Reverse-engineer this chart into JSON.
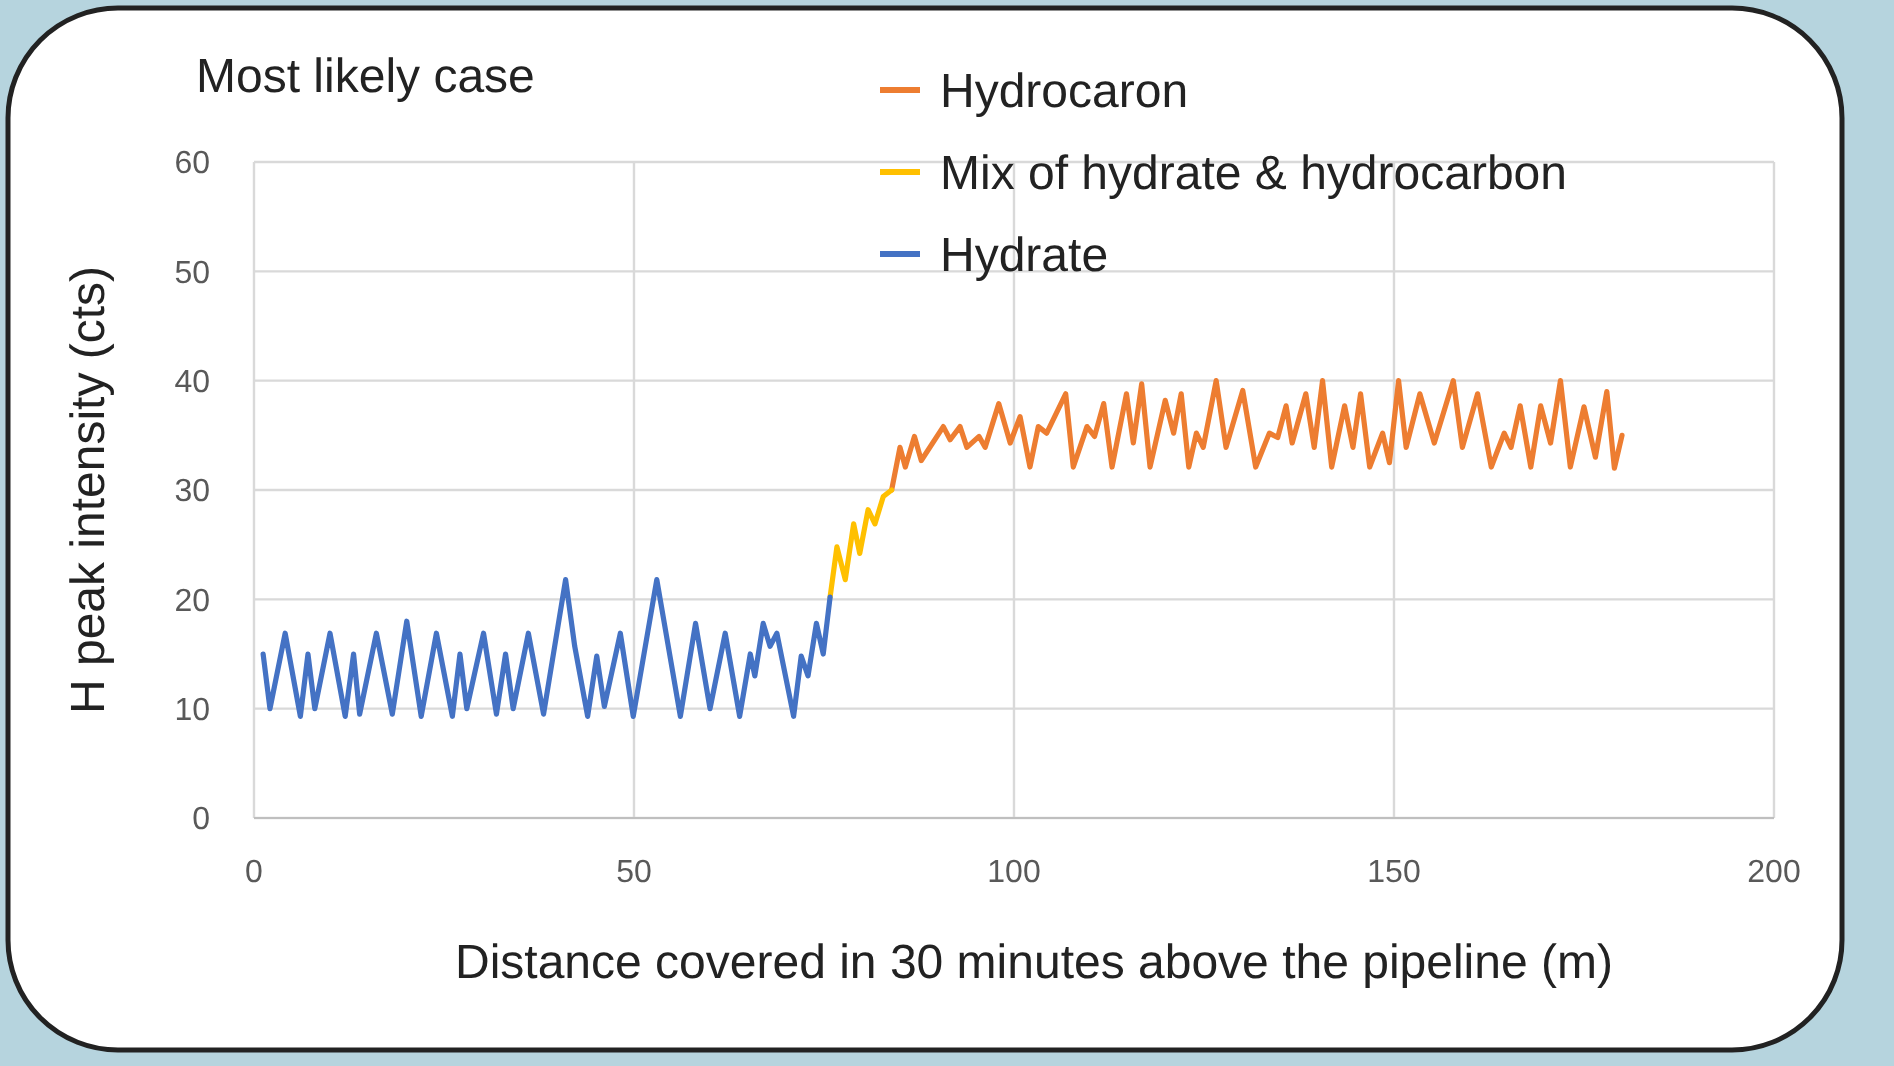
{
  "chart_data": {
    "type": "line",
    "title": "Most likely case",
    "xlabel": "Distance covered in 30 minutes above the pipeline (m)",
    "ylabel": "H peak intensity (cts)",
    "xlim": [
      0,
      200
    ],
    "xticks": [
      0,
      50,
      100,
      150,
      200
    ],
    "ylim": [
      0,
      60
    ],
    "yticks": [
      0,
      10,
      20,
      30,
      40,
      50,
      60
    ],
    "grid": true,
    "legend": "top right",
    "marker": "none",
    "line_style": "solid",
    "series": [
      {
        "name": "Hydrocaron",
        "color": "#ed7d31",
        "x": [
          83.9,
          85.0,
          85.7,
          86.9,
          87.8,
          90.7,
          91.6,
          92.9,
          93.8,
          95.4,
          96.2,
          98.0,
          99.5,
          100.8,
          102.1,
          103.2,
          104.3,
          106.8,
          107.8,
          109.6,
          110.6,
          111.8,
          112.9,
          114.8,
          115.7,
          116.8,
          117.9,
          119.9,
          121.0,
          122.0,
          123.0,
          124.0,
          124.9,
          126.6,
          127.9,
          130.1,
          131.8,
          133.6,
          134.7,
          135.8,
          136.6,
          138.4,
          139.5,
          140.6,
          141.8,
          143.5,
          144.6,
          145.6,
          146.8,
          148.5,
          149.4,
          150.6,
          151.6,
          153.4,
          155.3,
          157.8,
          159.0,
          161.0,
          162.8,
          164.5,
          165.4,
          166.6,
          168.0,
          169.3,
          170.6,
          171.9,
          173.2,
          175.0,
          176.5,
          178.0,
          179.0,
          180.0
        ],
        "values": [
          30.0,
          33.9,
          32.1,
          34.9,
          32.7,
          35.8,
          34.6,
          35.8,
          33.9,
          34.9,
          33.9,
          37.9,
          34.3,
          36.7,
          32.1,
          35.8,
          35.2,
          38.8,
          32.1,
          35.8,
          34.9,
          37.9,
          32.1,
          38.8,
          34.3,
          39.7,
          32.1,
          38.2,
          35.2,
          38.8,
          32.1,
          35.2,
          33.9,
          40.0,
          33.9,
          39.1,
          32.1,
          35.2,
          34.8,
          37.7,
          34.3,
          38.8,
          33.9,
          40.0,
          32.1,
          37.7,
          33.9,
          38.8,
          32.1,
          35.2,
          32.5,
          40.0,
          33.9,
          38.8,
          34.3,
          40.0,
          33.9,
          38.8,
          32.1,
          35.2,
          33.9,
          37.7,
          32.1,
          37.7,
          34.3,
          40.0,
          32.1,
          37.6,
          33.0,
          39.0,
          32.0,
          35.0
        ]
      },
      {
        "name": "Mix of hydrate & hydrocarbon",
        "color": "#ffc000",
        "x": [
          75.8,
          76.7,
          77.8,
          78.9,
          79.7,
          80.8,
          81.7,
          82.8,
          83.9
        ],
        "values": [
          20.2,
          24.8,
          21.8,
          26.9,
          24.2,
          28.2,
          26.9,
          29.4,
          30.0
        ]
      },
      {
        "name": "Hydrate",
        "color": "#4472c4",
        "x": [
          1.2,
          2.1,
          4.1,
          6.1,
          7.1,
          8.0,
          10.0,
          12.0,
          13.1,
          13.9,
          16.1,
          18.2,
          20.1,
          22.0,
          24.0,
          26.1,
          27.1,
          28.0,
          30.2,
          31.9,
          33.1,
          34.1,
          36.1,
          38.1,
          41.0,
          42.2,
          43.9,
          45.1,
          46.1,
          48.2,
          49.9,
          53.0,
          56.1,
          58.1,
          60.0,
          62.0,
          63.9,
          65.3,
          65.9,
          67.0,
          67.9,
          68.8,
          71.0,
          72.0,
          72.9,
          74.0,
          74.9,
          75.8
        ],
        "values": [
          15,
          10,
          16.9,
          9.3,
          15,
          10,
          16.9,
          9.3,
          15,
          9.5,
          16.9,
          9.5,
          18,
          9.3,
          16.9,
          9.3,
          15,
          10,
          16.9,
          9.5,
          15,
          10,
          16.9,
          9.5,
          21.8,
          15.7,
          9.3,
          14.8,
          10.2,
          16.9,
          9.3,
          21.8,
          9.3,
          17.8,
          10,
          16.9,
          9.3,
          15,
          13,
          17.8,
          15.7,
          16.9,
          9.3,
          14.8,
          13,
          17.8,
          15,
          20.2
        ]
      }
    ]
  }
}
